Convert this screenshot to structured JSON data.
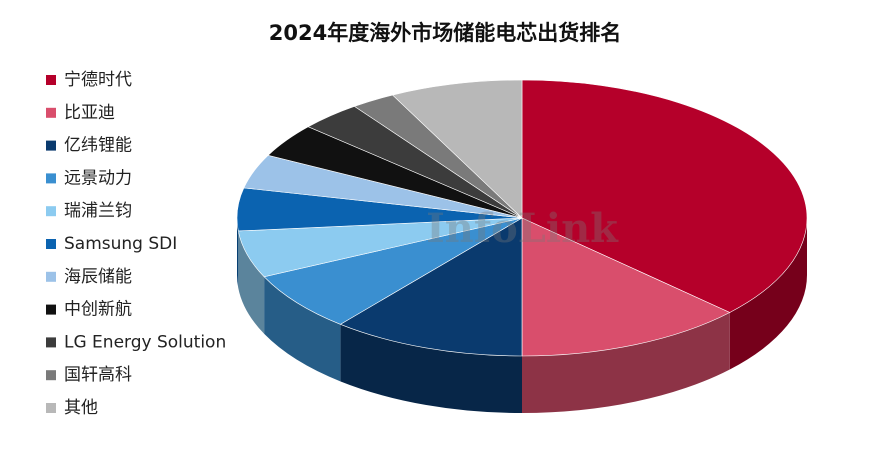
{
  "chart_data": {
    "type": "pie3d",
    "title": "2024年度海外市场储能电芯出货排名",
    "watermark": "InfoLink",
    "categories": [
      "宁德时代",
      "比亚迪",
      "亿纬锂能",
      "远景动力",
      "瑞浦兰钧",
      "Samsung SDI",
      "海辰储能",
      "中创新航",
      "LG Energy Solution",
      "国轩高科",
      "其他"
    ],
    "values": [
      37,
      13,
      11,
      7,
      5.5,
      5,
      4,
      4,
      3.5,
      2.5,
      7.5
    ],
    "colors": [
      "#b5002a",
      "#d94e6c",
      "#0a3a6e",
      "#3a8fd0",
      "#8ccbf0",
      "#0b63b0",
      "#9cc2e8",
      "#111111",
      "#3c3c3c",
      "#7a7a7a",
      "#b8b8b8"
    ],
    "legend": "left"
  }
}
